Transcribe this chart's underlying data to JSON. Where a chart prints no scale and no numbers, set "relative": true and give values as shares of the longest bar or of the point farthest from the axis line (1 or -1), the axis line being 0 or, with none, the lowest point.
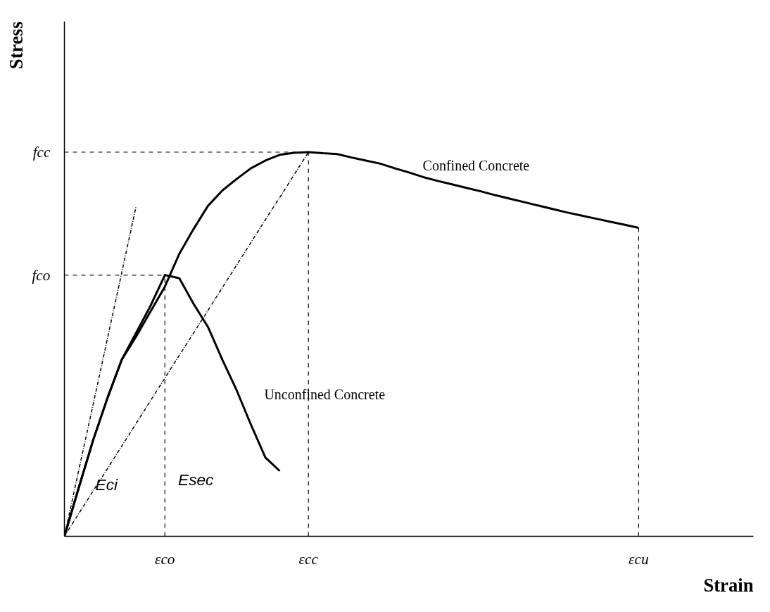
{
  "chart_data": {
    "type": "line",
    "relative": true,
    "xlabel": "Strain",
    "ylabel": "Stress",
    "categories": [
      null,
      null,
      null,
      null,
      null,
      null,
      null,
      "εco",
      null,
      null,
      null,
      null,
      null,
      null,
      null,
      null,
      null,
      "εcc",
      null,
      null,
      null,
      null,
      null,
      null,
      null,
      null,
      null,
      null,
      null,
      null,
      null,
      null,
      null,
      null,
      null,
      null,
      null,
      null,
      null,
      null,
      "εcu",
      null,
      null,
      null,
      null,
      null,
      null,
      null,
      null
    ],
    "series": [
      {
        "color": "#000000",
        "line_style": "solid",
        "values": [
          0,
          0.126,
          0.25,
          0.36,
          0.46,
          0.52,
          0.585,
          0.65,
          0.735,
          0.8,
          0.86,
          0.9,
          0.93,
          0.958,
          0.978,
          0.993,
          0.998,
          1.0,
          0.997,
          0.995,
          0.986,
          0.978,
          0.97,
          0.958,
          0.947,
          0.935,
          0.925,
          0.916,
          0.907,
          0.898,
          0.888,
          0.879,
          0.87,
          0.861,
          0.852,
          0.843,
          0.835,
          0.827,
          0.819,
          0.811,
          0.803,
          null,
          null,
          null,
          null,
          null,
          null,
          null,
          null
        ]
      },
      {
        "color": "#000000",
        "line_style": "solid",
        "values": [
          0,
          0.127,
          0.25,
          0.36,
          0.46,
          0.53,
          0.6,
          0.68,
          0.672,
          0.605,
          0.545,
          0.46,
          0.38,
          0.29,
          0.205,
          0.17,
          null,
          null,
          null,
          null,
          null,
          null,
          null,
          null,
          null,
          null,
          null,
          null,
          null,
          null,
          null,
          null,
          null,
          null,
          null,
          null,
          null,
          null,
          null,
          null,
          null,
          null,
          null,
          null,
          null,
          null,
          null,
          null,
          null
        ]
      },
      {
        "color": "#000000",
        "line_style": "dashdot",
        "values": [
          0,
          0.172,
          0.343,
          0.515,
          0.687,
          0.86,
          null,
          null,
          null,
          null,
          null,
          null,
          null,
          null,
          null,
          null,
          null,
          null,
          null,
          null,
          null,
          null,
          null,
          null,
          null,
          null,
          null,
          null,
          null,
          null,
          null,
          null,
          null,
          null,
          null,
          null,
          null,
          null,
          null,
          null,
          null,
          null,
          null,
          null,
          null,
          null,
          null,
          null,
          null
        ]
      },
      {
        "color": "#000000",
        "line_style": "dashdot",
        "values": [
          0,
          0.059,
          0.118,
          0.176,
          0.235,
          0.294,
          0.353,
          0.412,
          0.471,
          0.529,
          0.588,
          0.647,
          0.706,
          0.765,
          0.824,
          0.882,
          0.941,
          1.0,
          null,
          null,
          null,
          null,
          null,
          null,
          null,
          null,
          null,
          null,
          null,
          null,
          null,
          null,
          null,
          null,
          null,
          null,
          null,
          null,
          null,
          null,
          null,
          null,
          null,
          null,
          null,
          null,
          null,
          null,
          null
        ]
      }
    ],
    "ref_lines": [
      {
        "axis": "x",
        "value": "εco",
        "line_style": "dashed"
      },
      {
        "axis": "x",
        "value": "εcc",
        "line_style": "dashed"
      },
      {
        "axis": "x",
        "value": "εcu",
        "line_style": "dashed"
      },
      {
        "axis": "y",
        "value": 1.0,
        "label": "fcc",
        "line_style": "dashed"
      },
      {
        "axis": "y",
        "value": 0.68,
        "label": "fco",
        "line_style": "dashed"
      }
    ],
    "annotations": [
      "Confined Concrete",
      "Unconfined Concrete",
      "Eci",
      "Esec"
    ]
  }
}
